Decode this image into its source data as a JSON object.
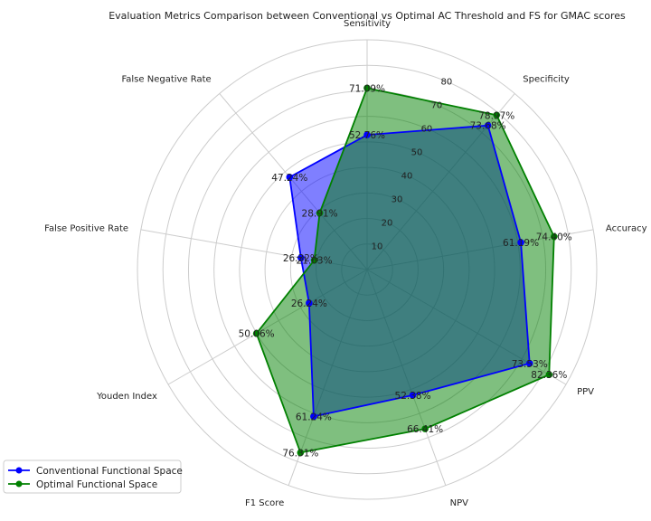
{
  "chart_data": {
    "type": "radar",
    "title": "Evaluation Metrics Comparison between Conventional vs Optimal AC Threshold and FS for GMAC scores",
    "axes": [
      "Sensitivity",
      "Specificity",
      "Accuracy",
      "PPV",
      "NPV",
      "F1 Score",
      "Youden Index",
      "False Positive Rate",
      "False Negative Rate"
    ],
    "radial_ticks": [
      10,
      20,
      30,
      40,
      50,
      60,
      70,
      80
    ],
    "rmax": 90,
    "grid": true,
    "legend_position": "bottom-left",
    "series": [
      {
        "name": "Conventional Functional Space",
        "color": "#0000ff",
        "fill": "#0000ff",
        "values": [
          52.76,
          73.68,
          61.19,
          73.53,
          52.38,
          61.24,
          26.24,
          26.32,
          47.24
        ],
        "labels": [
          "52.76%",
          "73.68%",
          "61.19%",
          "73.53%",
          "52.38%",
          "61.24%",
          "26.24%",
          "26.32%",
          "47.24%"
        ]
      },
      {
        "name": "Optimal Functional Space",
        "color": "#008000",
        "fill": "#008000",
        "values": [
          71.09,
          78.97,
          74.4,
          82.36,
          66.41,
          76.31,
          50.06,
          21.03,
          28.91
        ],
        "labels": [
          "71.09%",
          "78.97%",
          "74.40%",
          "82.36%",
          "66.41%",
          "76.31%",
          "50.06%",
          "21.03%",
          "28.91%"
        ]
      }
    ]
  }
}
